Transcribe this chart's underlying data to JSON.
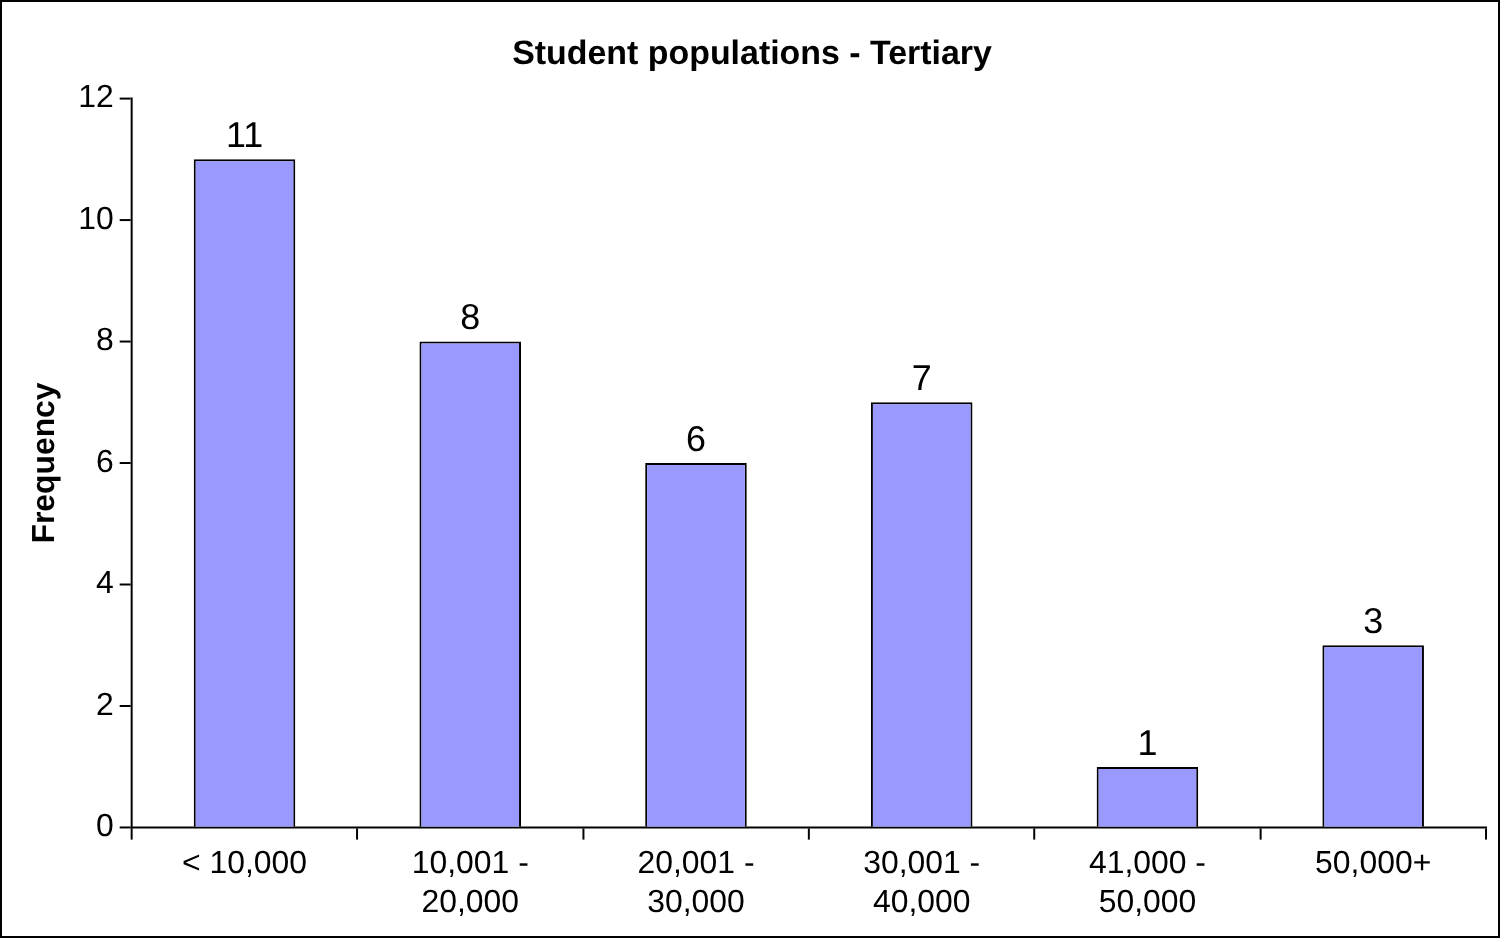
{
  "chart_data": {
    "type": "bar",
    "title": "Student populations - Tertiary",
    "ylabel": "Frequency",
    "categories": [
      "< 10,000",
      "10,001 - 20,000",
      "20,001 - 30,000",
      "30,001 - 40,000",
      "41,000 - 50,000",
      "50,000+"
    ],
    "values": [
      11,
      8,
      6,
      7,
      1,
      3
    ],
    "color": "#9999ff",
    "ylim": [
      0,
      12
    ],
    "yticks": [
      0,
      2,
      4,
      6,
      8,
      10,
      12
    ],
    "grid": false,
    "legend": false,
    "data_labels": true
  }
}
